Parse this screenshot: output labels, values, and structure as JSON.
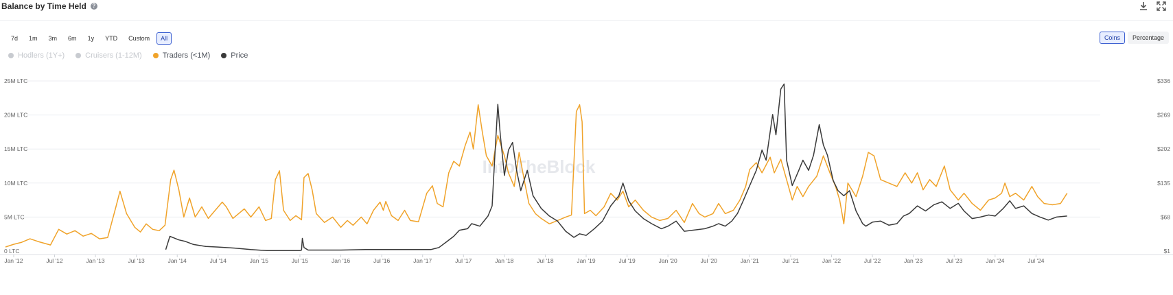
{
  "header": {
    "title": "Balance by Time Held",
    "help_icon": "question-circle-icon",
    "download_icon": "download-icon",
    "expand_icon": "expand-icon"
  },
  "ranges": [
    "7d",
    "1m",
    "3m",
    "6m",
    "1y",
    "YTD",
    "Custom",
    "All"
  ],
  "active_range": "All",
  "modes": [
    "Coins",
    "Percentage"
  ],
  "active_mode": "Coins",
  "legend": [
    {
      "name": "Hodlers (1Y+)",
      "color": "#c8cbd0",
      "active": false
    },
    {
      "name": "Cruisers (1-12M)",
      "color": "#c8cbd0",
      "active": false
    },
    {
      "name": "Traders (<1M)",
      "color": "#f0a32a",
      "active": true
    },
    {
      "name": "Price",
      "color": "#3a3a3a",
      "active": true
    }
  ],
  "watermark": "IntoTheBlock",
  "chart_data": {
    "type": "line",
    "x_labels": [
      "Jan '12",
      "Jul '12",
      "Jan '13",
      "Jul '13",
      "Jan '14",
      "Jul '14",
      "Jan '15",
      "Jul '15",
      "Jan '16",
      "Jul '16",
      "Jan '17",
      "Jul '17",
      "Jan '18",
      "Jul '18",
      "Jan '19",
      "Jul '19",
      "Jan '20",
      "Jul '20",
      "Jan '21",
      "Jul '21",
      "Jan '22",
      "Jul '22",
      "Jan '23",
      "Jul '23",
      "Jan '24",
      "Jul '24"
    ],
    "y_left_labels": [
      "0 LTC",
      "5M LTC",
      "10M LTC",
      "15M LTC",
      "20M LTC",
      "25M LTC"
    ],
    "y_right_labels": [
      "$1",
      "$68",
      "$135",
      "$202",
      "$269",
      "$336"
    ],
    "y_left_range": [
      0,
      25
    ],
    "y_right_range": [
      1,
      336
    ],
    "x_range": [
      2011.9,
      2024.95
    ],
    "grid": true,
    "series": [
      {
        "name": "Traders (<1M)",
        "axis": "left",
        "color": "#f0a32a",
        "unit": "M LTC",
        "points": [
          [
            2011.9,
            0.6
          ],
          [
            2012.0,
            1.0
          ],
          [
            2012.1,
            1.3
          ],
          [
            2012.2,
            1.8
          ],
          [
            2012.3,
            1.4
          ],
          [
            2012.45,
            0.9
          ],
          [
            2012.55,
            3.2
          ],
          [
            2012.65,
            2.5
          ],
          [
            2012.75,
            3.0
          ],
          [
            2012.85,
            2.2
          ],
          [
            2012.95,
            2.6
          ],
          [
            2013.05,
            1.8
          ],
          [
            2013.15,
            2.0
          ],
          [
            2013.25,
            6.5
          ],
          [
            2013.3,
            8.8
          ],
          [
            2013.38,
            5.5
          ],
          [
            2013.48,
            3.5
          ],
          [
            2013.55,
            2.8
          ],
          [
            2013.62,
            4.0
          ],
          [
            2013.7,
            3.2
          ],
          [
            2013.78,
            3.0
          ],
          [
            2013.85,
            3.8
          ],
          [
            2013.92,
            10.5
          ],
          [
            2013.96,
            11.9
          ],
          [
            2014.02,
            9.0
          ],
          [
            2014.08,
            5.0
          ],
          [
            2014.15,
            7.8
          ],
          [
            2014.22,
            5.0
          ],
          [
            2014.3,
            6.5
          ],
          [
            2014.38,
            4.8
          ],
          [
            2014.45,
            5.8
          ],
          [
            2014.55,
            7.2
          ],
          [
            2014.6,
            6.5
          ],
          [
            2014.68,
            4.8
          ],
          [
            2014.75,
            5.5
          ],
          [
            2014.82,
            6.2
          ],
          [
            2014.9,
            5.0
          ],
          [
            2015.0,
            6.5
          ],
          [
            2015.08,
            4.5
          ],
          [
            2015.15,
            4.8
          ],
          [
            2015.2,
            10.5
          ],
          [
            2015.25,
            11.8
          ],
          [
            2015.3,
            6.0
          ],
          [
            2015.38,
            4.5
          ],
          [
            2015.45,
            5.2
          ],
          [
            2015.52,
            4.6
          ],
          [
            2015.55,
            10.8
          ],
          [
            2015.6,
            11.4
          ],
          [
            2015.65,
            9.0
          ],
          [
            2015.7,
            5.5
          ],
          [
            2015.8,
            4.2
          ],
          [
            2015.9,
            5.0
          ],
          [
            2016.0,
            3.5
          ],
          [
            2016.08,
            4.5
          ],
          [
            2016.15,
            3.8
          ],
          [
            2016.25,
            5.0
          ],
          [
            2016.32,
            4.0
          ],
          [
            2016.4,
            6.0
          ],
          [
            2016.48,
            7.2
          ],
          [
            2016.52,
            6.0
          ],
          [
            2016.55,
            7.3
          ],
          [
            2016.62,
            5.2
          ],
          [
            2016.7,
            4.5
          ],
          [
            2016.78,
            6.0
          ],
          [
            2016.85,
            4.5
          ],
          [
            2016.95,
            4.3
          ],
          [
            2017.05,
            8.5
          ],
          [
            2017.12,
            9.6
          ],
          [
            2017.18,
            7.0
          ],
          [
            2017.25,
            6.5
          ],
          [
            2017.32,
            11.5
          ],
          [
            2017.38,
            13.2
          ],
          [
            2017.45,
            12.5
          ],
          [
            2017.52,
            15.5
          ],
          [
            2017.58,
            17.5
          ],
          [
            2017.62,
            15.0
          ],
          [
            2017.68,
            21.5
          ],
          [
            2017.73,
            17.5
          ],
          [
            2017.78,
            14.0
          ],
          [
            2017.85,
            12.5
          ],
          [
            2017.92,
            17.0
          ],
          [
            2018.0,
            14.0
          ],
          [
            2018.05,
            11.5
          ],
          [
            2018.12,
            9.5
          ],
          [
            2018.18,
            14.5
          ],
          [
            2018.25,
            10.0
          ],
          [
            2018.3,
            7.0
          ],
          [
            2018.38,
            5.5
          ],
          [
            2018.45,
            4.8
          ],
          [
            2018.55,
            4.0
          ],
          [
            2018.65,
            4.5
          ],
          [
            2018.75,
            5.0
          ],
          [
            2018.82,
            5.3
          ],
          [
            2018.88,
            20.5
          ],
          [
            2018.92,
            21.5
          ],
          [
            2018.95,
            19.0
          ],
          [
            2018.98,
            5.5
          ],
          [
            2019.05,
            6.0
          ],
          [
            2019.12,
            5.2
          ],
          [
            2019.22,
            6.5
          ],
          [
            2019.3,
            8.5
          ],
          [
            2019.38,
            7.5
          ],
          [
            2019.45,
            8.8
          ],
          [
            2019.52,
            6.5
          ],
          [
            2019.6,
            7.5
          ],
          [
            2019.7,
            6.0
          ],
          [
            2019.8,
            5.0
          ],
          [
            2019.9,
            4.5
          ],
          [
            2020.0,
            4.8
          ],
          [
            2020.1,
            6.0
          ],
          [
            2020.2,
            4.2
          ],
          [
            2020.3,
            7.0
          ],
          [
            2020.38,
            5.5
          ],
          [
            2020.45,
            5.0
          ],
          [
            2020.55,
            5.5
          ],
          [
            2020.62,
            7.0
          ],
          [
            2020.7,
            5.5
          ],
          [
            2020.8,
            6.0
          ],
          [
            2020.88,
            7.5
          ],
          [
            2020.95,
            9.5
          ],
          [
            2021.0,
            12.0
          ],
          [
            2021.08,
            13.0
          ],
          [
            2021.15,
            11.5
          ],
          [
            2021.25,
            13.8
          ],
          [
            2021.3,
            11.5
          ],
          [
            2021.38,
            13.5
          ],
          [
            2021.45,
            10.5
          ],
          [
            2021.52,
            7.5
          ],
          [
            2021.58,
            9.5
          ],
          [
            2021.65,
            8.0
          ],
          [
            2021.72,
            9.5
          ],
          [
            2021.82,
            11.0
          ],
          [
            2021.9,
            14.0
          ],
          [
            2021.98,
            11.5
          ],
          [
            2022.05,
            9.5
          ],
          [
            2022.1,
            7.5
          ],
          [
            2022.15,
            4.0
          ],
          [
            2022.2,
            10.0
          ],
          [
            2022.3,
            8.0
          ],
          [
            2022.38,
            11.0
          ],
          [
            2022.45,
            14.5
          ],
          [
            2022.52,
            14.0
          ],
          [
            2022.6,
            10.5
          ],
          [
            2022.7,
            10.0
          ],
          [
            2022.8,
            9.5
          ],
          [
            2022.9,
            11.5
          ],
          [
            2022.98,
            10.0
          ],
          [
            2023.05,
            11.5
          ],
          [
            2023.12,
            9.0
          ],
          [
            2023.2,
            10.5
          ],
          [
            2023.28,
            9.5
          ],
          [
            2023.38,
            12.5
          ],
          [
            2023.45,
            9.0
          ],
          [
            2023.55,
            7.5
          ],
          [
            2023.62,
            8.5
          ],
          [
            2023.72,
            7.0
          ],
          [
            2023.82,
            6.0
          ],
          [
            2023.92,
            7.5
          ],
          [
            2024.0,
            7.8
          ],
          [
            2024.08,
            8.5
          ],
          [
            2024.12,
            10.0
          ],
          [
            2024.18,
            8.0
          ],
          [
            2024.25,
            8.5
          ],
          [
            2024.35,
            7.5
          ],
          [
            2024.45,
            9.5
          ],
          [
            2024.52,
            8.0
          ],
          [
            2024.6,
            7.0
          ],
          [
            2024.7,
            6.8
          ],
          [
            2024.8,
            7.0
          ],
          [
            2024.88,
            8.5
          ]
        ]
      },
      {
        "name": "Price",
        "axis": "right",
        "color": "#3a3a3a",
        "unit": "USD",
        "points": [
          [
            2013.86,
            4
          ],
          [
            2013.91,
            30
          ],
          [
            2013.96,
            27
          ],
          [
            2014.02,
            23
          ],
          [
            2014.1,
            20
          ],
          [
            2014.2,
            14
          ],
          [
            2014.35,
            10
          ],
          [
            2014.5,
            9
          ],
          [
            2014.7,
            7
          ],
          [
            2014.9,
            4
          ],
          [
            2015.1,
            2
          ],
          [
            2015.3,
            2
          ],
          [
            2015.5,
            2
          ],
          [
            2015.52,
            3
          ],
          [
            2015.53,
            26
          ],
          [
            2015.55,
            8
          ],
          [
            2015.6,
            3
          ],
          [
            2015.8,
            3
          ],
          [
            2016.0,
            3
          ],
          [
            2016.3,
            4
          ],
          [
            2016.6,
            4
          ],
          [
            2016.9,
            4
          ],
          [
            2017.1,
            4
          ],
          [
            2017.2,
            8
          ],
          [
            2017.3,
            20
          ],
          [
            2017.38,
            30
          ],
          [
            2017.45,
            42
          ],
          [
            2017.55,
            45
          ],
          [
            2017.6,
            55
          ],
          [
            2017.7,
            50
          ],
          [
            2017.8,
            70
          ],
          [
            2017.85,
            90
          ],
          [
            2017.88,
            180
          ],
          [
            2017.92,
            290
          ],
          [
            2017.95,
            230
          ],
          [
            2018.0,
            150
          ],
          [
            2018.05,
            200
          ],
          [
            2018.1,
            215
          ],
          [
            2018.15,
            160
          ],
          [
            2018.2,
            120
          ],
          [
            2018.28,
            160
          ],
          [
            2018.35,
            110
          ],
          [
            2018.45,
            85
          ],
          [
            2018.55,
            70
          ],
          [
            2018.65,
            60
          ],
          [
            2018.75,
            40
          ],
          [
            2018.85,
            28
          ],
          [
            2018.92,
            35
          ],
          [
            2019.0,
            32
          ],
          [
            2019.1,
            45
          ],
          [
            2019.2,
            60
          ],
          [
            2019.3,
            90
          ],
          [
            2019.4,
            110
          ],
          [
            2019.45,
            135
          ],
          [
            2019.52,
            100
          ],
          [
            2019.6,
            80
          ],
          [
            2019.7,
            65
          ],
          [
            2019.8,
            55
          ],
          [
            2019.92,
            45
          ],
          [
            2020.0,
            50
          ],
          [
            2020.1,
            60
          ],
          [
            2020.2,
            40
          ],
          [
            2020.3,
            42
          ],
          [
            2020.45,
            45
          ],
          [
            2020.55,
            50
          ],
          [
            2020.62,
            55
          ],
          [
            2020.7,
            50
          ],
          [
            2020.78,
            60
          ],
          [
            2020.85,
            75
          ],
          [
            2020.92,
            100
          ],
          [
            2021.0,
            130
          ],
          [
            2021.08,
            160
          ],
          [
            2021.15,
            200
          ],
          [
            2021.2,
            180
          ],
          [
            2021.28,
            270
          ],
          [
            2021.32,
            230
          ],
          [
            2021.38,
            320
          ],
          [
            2021.42,
            330
          ],
          [
            2021.45,
            180
          ],
          [
            2021.52,
            130
          ],
          [
            2021.6,
            160
          ],
          [
            2021.65,
            180
          ],
          [
            2021.72,
            160
          ],
          [
            2021.78,
            190
          ],
          [
            2021.85,
            250
          ],
          [
            2021.9,
            210
          ],
          [
            2021.95,
            190
          ],
          [
            2022.02,
            140
          ],
          [
            2022.08,
            120
          ],
          [
            2022.15,
            110
          ],
          [
            2022.22,
            120
          ],
          [
            2022.3,
            80
          ],
          [
            2022.38,
            55
          ],
          [
            2022.42,
            50
          ],
          [
            2022.5,
            58
          ],
          [
            2022.6,
            60
          ],
          [
            2022.7,
            52
          ],
          [
            2022.8,
            55
          ],
          [
            2022.88,
            70
          ],
          [
            2022.95,
            75
          ],
          [
            2023.05,
            90
          ],
          [
            2023.15,
            80
          ],
          [
            2023.25,
            92
          ],
          [
            2023.35,
            98
          ],
          [
            2023.45,
            85
          ],
          [
            2023.55,
            95
          ],
          [
            2023.62,
            80
          ],
          [
            2023.72,
            65
          ],
          [
            2023.82,
            68
          ],
          [
            2023.92,
            72
          ],
          [
            2024.0,
            70
          ],
          [
            2024.1,
            85
          ],
          [
            2024.18,
            100
          ],
          [
            2024.25,
            85
          ],
          [
            2024.35,
            90
          ],
          [
            2024.45,
            75
          ],
          [
            2024.55,
            68
          ],
          [
            2024.65,
            62
          ],
          [
            2024.75,
            68
          ],
          [
            2024.88,
            70
          ]
        ]
      }
    ]
  }
}
